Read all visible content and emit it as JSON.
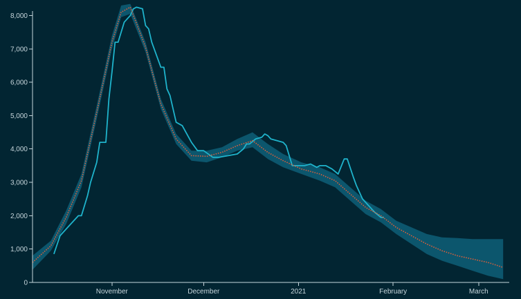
{
  "chart_data": {
    "type": "line",
    "title": "",
    "xlabel": "",
    "ylabel": "",
    "x_domain": [
      "2020-10-06",
      "2021-03-11"
    ],
    "ylim": [
      0,
      8300
    ],
    "y_ticks": [
      0,
      1000,
      2000,
      3000,
      4000,
      5000,
      6000,
      7000,
      8000
    ],
    "y_tick_labels": [
      "0",
      "1,000",
      "2,000",
      "3,000",
      "4,000",
      "5,000",
      "6,000",
      "7,000",
      "8,000"
    ],
    "x_ticks": [
      {
        "date": "2020-11-01",
        "label": "November"
      },
      {
        "date": "2020-12-01",
        "label": "December"
      },
      {
        "date": "2021-01-01",
        "label": "2021"
      },
      {
        "date": "2021-02-01",
        "label": "February"
      },
      {
        "date": "2021-03-01",
        "label": "March"
      }
    ],
    "colors": {
      "background": "#022532",
      "band": "#0e5f78",
      "observed": "#1fb4cc",
      "fitted": "#e0603a",
      "axis": "#c7d6dc"
    },
    "series": [
      {
        "kind": "uncertainty-band",
        "x": [
          "2020-10-06",
          "2020-10-12",
          "2020-10-17",
          "2020-10-22",
          "2020-10-27",
          "2020-11-01",
          "2020-11-04",
          "2020-11-07",
          "2020-11-12",
          "2020-11-17",
          "2020-11-22",
          "2020-11-27",
          "2020-12-02",
          "2020-12-07",
          "2020-12-12",
          "2020-12-17",
          "2020-12-22",
          "2020-12-27",
          "2021-01-02",
          "2021-01-08",
          "2021-01-13",
          "2021-01-18",
          "2021-01-23",
          "2021-01-28",
          "2021-02-02",
          "2021-02-07",
          "2021-02-12",
          "2021-02-17",
          "2021-02-22",
          "2021-02-27",
          "2021-03-04",
          "2021-03-09"
        ],
        "lower": [
          380,
          950,
          1750,
          2850,
          4900,
          7000,
          7950,
          8050,
          6900,
          5200,
          4150,
          3650,
          3600,
          3750,
          3950,
          4050,
          3700,
          3450,
          3250,
          3050,
          2850,
          2450,
          2050,
          1800,
          1450,
          1150,
          850,
          650,
          500,
          350,
          200,
          100
        ],
        "upper": [
          800,
          1250,
          2150,
          3250,
          5300,
          7400,
          8300,
          8350,
          7200,
          5500,
          4450,
          3950,
          3950,
          4050,
          4300,
          4500,
          4150,
          3850,
          3600,
          3450,
          3250,
          2850,
          2450,
          2200,
          1850,
          1650,
          1450,
          1350,
          1330,
          1300,
          1300,
          1300
        ]
      },
      {
        "kind": "observed",
        "x": [
          "2020-10-13",
          "2020-10-15",
          "2020-10-18",
          "2020-10-21",
          "2020-10-22",
          "2020-10-24",
          "2020-10-25",
          "2020-10-27",
          "2020-10-28",
          "2020-10-30",
          "2020-10-31",
          "2020-11-01",
          "2020-11-02",
          "2020-11-03",
          "2020-11-05",
          "2020-11-06",
          "2020-11-07",
          "2020-11-08",
          "2020-11-09",
          "2020-11-11",
          "2020-11-12",
          "2020-11-13",
          "2020-11-14",
          "2020-11-16",
          "2020-11-17",
          "2020-11-18",
          "2020-11-19",
          "2020-11-20",
          "2020-11-22",
          "2020-11-24",
          "2020-11-27",
          "2020-11-29",
          "2020-12-01",
          "2020-12-04",
          "2020-12-06",
          "2020-12-09",
          "2020-12-12",
          "2020-12-14",
          "2020-12-15",
          "2020-12-16",
          "2020-12-18",
          "2020-12-20",
          "2020-12-21",
          "2020-12-22",
          "2020-12-23",
          "2020-12-27",
          "2020-12-28",
          "2020-12-30",
          "2021-01-03",
          "2021-01-05",
          "2021-01-07",
          "2021-01-08",
          "2021-01-10",
          "2021-01-12",
          "2021-01-14",
          "2021-01-16",
          "2021-01-17",
          "2021-01-19",
          "2021-01-20",
          "2021-01-22",
          "2021-01-24",
          "2021-01-26",
          "2021-01-28",
          "2021-01-29"
        ],
        "y": [
          850,
          1400,
          1700,
          2000,
          2000,
          2600,
          3000,
          3600,
          4200,
          4200,
          5500,
          6300,
          7200,
          7200,
          7800,
          7900,
          8000,
          8200,
          8250,
          8200,
          7700,
          7600,
          7200,
          6700,
          6450,
          6450,
          5800,
          5600,
          4800,
          4700,
          4200,
          3950,
          3950,
          3750,
          3750,
          3800,
          3850,
          4000,
          4150,
          4150,
          4300,
          4350,
          4450,
          4400,
          4300,
          4200,
          4100,
          3500,
          3500,
          3550,
          3450,
          3500,
          3500,
          3400,
          3250,
          3700,
          3700,
          3150,
          2900,
          2500,
          2300,
          2100,
          1950,
          1950
        ]
      },
      {
        "kind": "fitted",
        "x": [
          "2020-10-06",
          "2020-10-12",
          "2020-10-17",
          "2020-10-22",
          "2020-10-27",
          "2020-11-01",
          "2020-11-04",
          "2020-11-07",
          "2020-11-12",
          "2020-11-17",
          "2020-11-22",
          "2020-11-27",
          "2020-12-02",
          "2020-12-07",
          "2020-12-12",
          "2020-12-17",
          "2020-12-22",
          "2020-12-27",
          "2021-01-02",
          "2021-01-08",
          "2021-01-13",
          "2021-01-18",
          "2021-01-23",
          "2021-01-28",
          "2021-02-02",
          "2021-02-07",
          "2021-02-12",
          "2021-02-17",
          "2021-02-22",
          "2021-02-27",
          "2021-03-04",
          "2021-03-09"
        ],
        "y": [
          600,
          1100,
          1950,
          3050,
          5100,
          7200,
          8100,
          8250,
          7050,
          5350,
          4300,
          3800,
          3780,
          3900,
          4100,
          4250,
          3900,
          3650,
          3400,
          3250,
          3050,
          2650,
          2250,
          2000,
          1650,
          1400,
          1150,
          950,
          800,
          700,
          600,
          450
        ]
      }
    ]
  }
}
